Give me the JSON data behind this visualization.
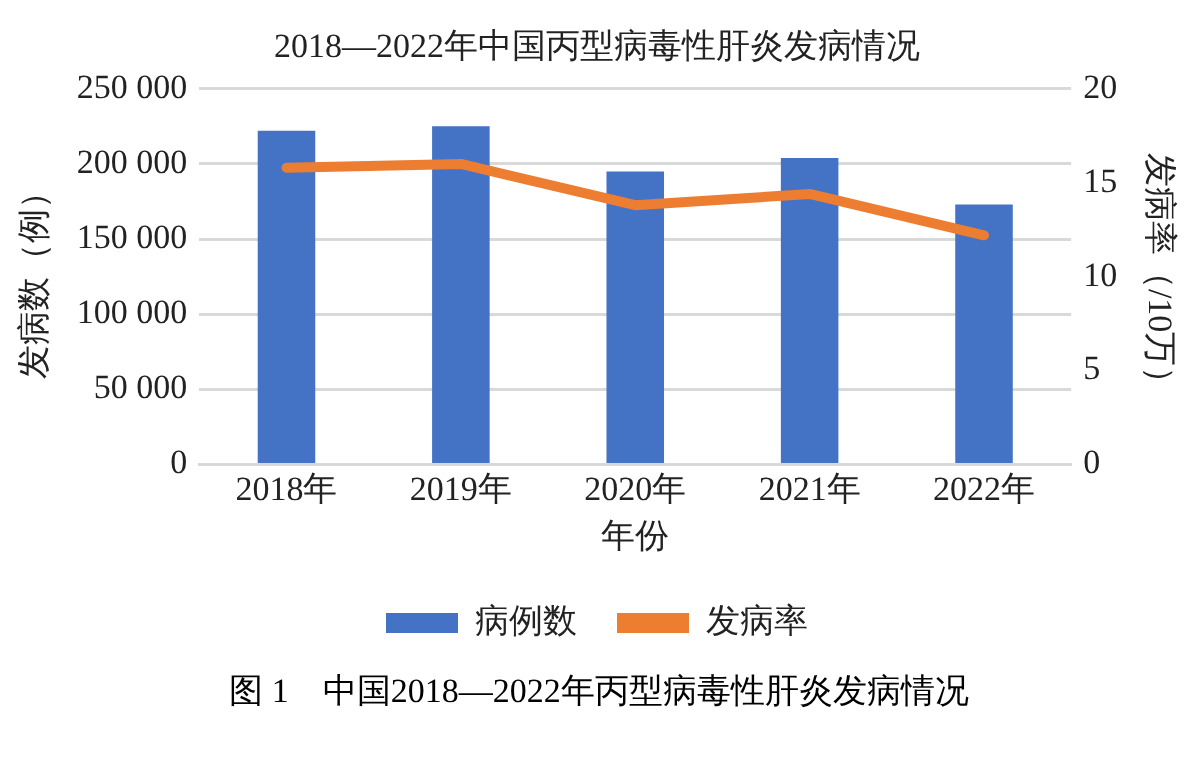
{
  "chart_data": {
    "type": "bar",
    "title": "2018—2022年中国丙型病毒性肝炎发病情况",
    "xlabel": "年份",
    "ylabel": "发病数（例）",
    "y2label": "发病率（/10万）",
    "categories": [
      "2018年",
      "2019年",
      "2020年",
      "2021年",
      "2022年"
    ],
    "series": [
      {
        "name": "病例数",
        "color": "#4472c4",
        "values": [
          222000,
          225000,
          195000,
          204000,
          173000
        ]
      },
      {
        "name": "发病率",
        "type": "line",
        "axis": "y2",
        "color": "#ed7d31",
        "values": [
          15.8,
          16.0,
          13.8,
          14.4,
          12.2
        ]
      }
    ],
    "ylim": [
      0,
      250000
    ],
    "yticks": [
      0,
      {
        "value": 50000,
        "label": "50 000"
      },
      {
        "value": 100000,
        "label": "100 000"
      },
      {
        "value": 150000,
        "label": "150 000"
      },
      {
        "value": 200000,
        "label": "200 000"
      },
      {
        "value": 250000,
        "label": "250 000"
      }
    ],
    "y2lim": [
      0,
      20
    ],
    "y2ticks": [
      0,
      5,
      10,
      15,
      20
    ],
    "grid": "y",
    "legend": "bottom",
    "marker": "none",
    "annotations": [
      "图 1　中国2018—2022年丙型病毒性肝炎发病情况"
    ]
  }
}
